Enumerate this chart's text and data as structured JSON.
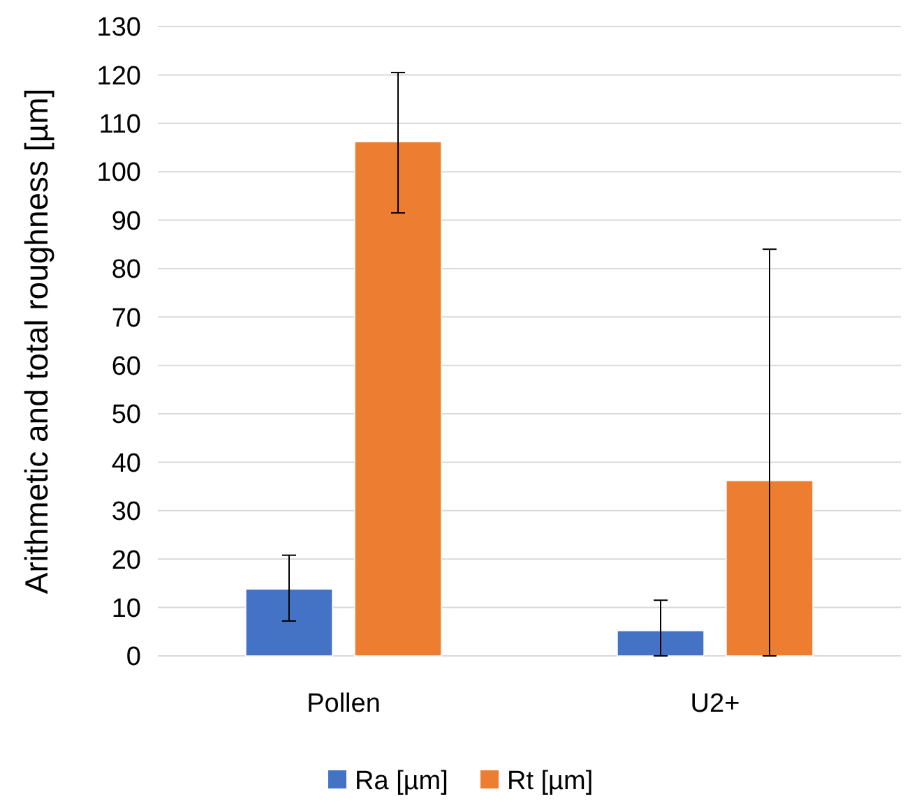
{
  "chart_data": {
    "type": "bar",
    "ylabel": "Arithmetic and total roughness [µm]",
    "categories": [
      "Pollen",
      "U2+"
    ],
    "series": [
      {
        "name": "Ra [µm]",
        "color": "#4472c4",
        "values": [
          13.8,
          5.2
        ],
        "errors": [
          [
            7.2,
            20.8
          ],
          [
            0,
            11.5
          ]
        ]
      },
      {
        "name": "Rt [µm]",
        "color": "#ed7d31",
        "values": [
          106.2,
          36.2
        ],
        "errors": [
          [
            91.5,
            120.5
          ],
          [
            0,
            84
          ]
        ]
      }
    ],
    "ylim": [
      0,
      130
    ],
    "yticks": [
      0,
      10,
      20,
      30,
      40,
      50,
      60,
      70,
      80,
      90,
      100,
      110,
      120,
      130
    ],
    "grid": "y",
    "legend": "bottom"
  }
}
